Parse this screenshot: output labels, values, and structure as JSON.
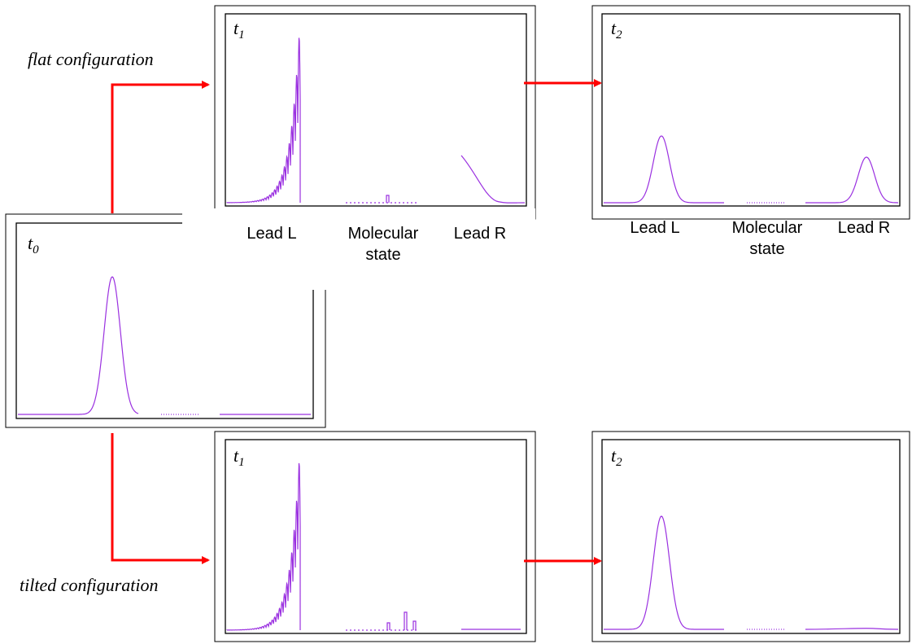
{
  "config_labels": {
    "flat": "flat configuration",
    "tilted": "tilted configuration"
  },
  "panels": [
    {
      "id": "t0",
      "time_label": "t0",
      "time_base": "t",
      "time_sub": "0"
    },
    {
      "id": "flat-t1",
      "time_label": "t1",
      "time_base": "t",
      "time_sub": "1",
      "region_labels": [
        "Lead L",
        "Molecular",
        "state",
        "Lead R"
      ]
    },
    {
      "id": "flat-t2",
      "time_label": "t2",
      "time_base": "t",
      "time_sub": "2",
      "region_labels": [
        "Lead L",
        "Molecular",
        "state",
        "Lead R"
      ]
    },
    {
      "id": "tilted-t1",
      "time_label": "t1",
      "time_base": "t",
      "time_sub": "1"
    },
    {
      "id": "tilted-t2",
      "time_label": "t2",
      "time_base": "t",
      "time_sub": "2"
    }
  ],
  "colors": {
    "curve": "#9a30e0",
    "arrow": "#ff0000",
    "frame": "#000000"
  }
}
